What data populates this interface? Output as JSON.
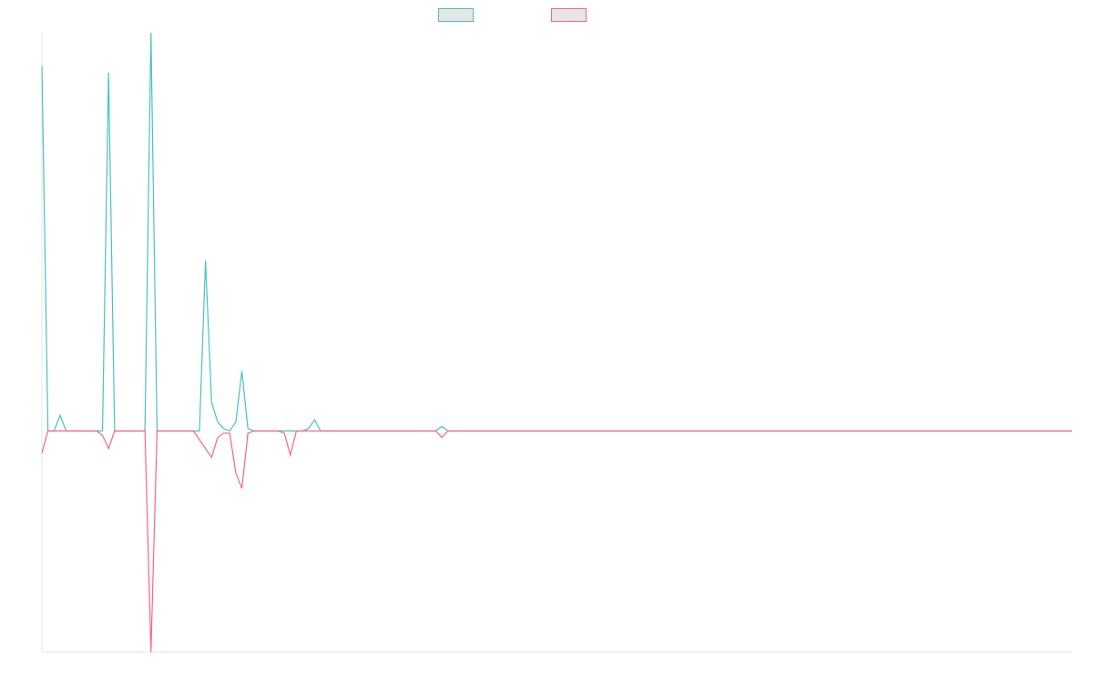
{
  "colors": {
    "series_a": "#4bc0c0",
    "series_b": "#ff6384",
    "axis": "#e6e6e6",
    "legend_fill": "#e6e6e6"
  },
  "chart_data": {
    "type": "line",
    "title": "",
    "xlabel": "",
    "ylabel": "",
    "grid": false,
    "axes_visible": true,
    "tick_labels_visible": false,
    "legend_placement": "top-center",
    "x": [
      0,
      1,
      2,
      3,
      4,
      5,
      6,
      7,
      8,
      9,
      10,
      11,
      12,
      13,
      14,
      15,
      16,
      17,
      18,
      19,
      20,
      21,
      22,
      23,
      24,
      25,
      26,
      27,
      28,
      29,
      30,
      31,
      32,
      33,
      34,
      35,
      36,
      37,
      38,
      39,
      40,
      41,
      42,
      43,
      44,
      45,
      46,
      47,
      48,
      49,
      50,
      51,
      52,
      53,
      54,
      55,
      56,
      57,
      58,
      59,
      60,
      61,
      62,
      63,
      64,
      65,
      66,
      67,
      68,
      69,
      70,
      71,
      72,
      73,
      74,
      75,
      76,
      77,
      78,
      79,
      80,
      81,
      82,
      83,
      84,
      85,
      86,
      87,
      88,
      89,
      90,
      91,
      92,
      93,
      94,
      95,
      96,
      97,
      98,
      99,
      100,
      101,
      102,
      103,
      104,
      105,
      106,
      107,
      108,
      109,
      110,
      111,
      112,
      113,
      114,
      115,
      116,
      117,
      118,
      119,
      120,
      121,
      122,
      123,
      124,
      125,
      126,
      127,
      128,
      129,
      130,
      131,
      132,
      133,
      134,
      135,
      136,
      137,
      138,
      139,
      140,
      141,
      142,
      143,
      144,
      145,
      146,
      147,
      148,
      149,
      150,
      151,
      152,
      153,
      154,
      155,
      156,
      157,
      158,
      159,
      160,
      161,
      162,
      163,
      164,
      165,
      166,
      167,
      168,
      169,
      170
    ],
    "ylim": [
      -1,
      1.8
    ],
    "series": [
      {
        "name": "",
        "color": "#4bc0c0",
        "values": [
          1.65,
          0,
          0,
          0.07,
          0,
          0,
          0,
          0,
          0,
          0,
          0,
          1.62,
          0,
          0,
          0,
          0,
          0,
          0,
          1.8,
          0,
          0,
          0,
          0,
          0,
          0,
          0,
          0,
          0.77,
          0.13,
          0.04,
          0.01,
          0,
          0.04,
          0.27,
          0.01,
          0,
          0,
          0,
          0,
          0,
          0,
          0,
          0,
          0,
          0.01,
          0.05,
          0,
          0,
          0,
          0,
          0,
          0,
          0,
          0,
          0,
          0,
          0,
          0,
          0,
          0,
          0,
          0,
          0,
          0,
          0,
          0,
          0.02,
          0,
          0,
          0,
          0,
          0,
          0,
          0,
          0,
          0,
          0,
          0,
          0,
          0,
          0,
          0,
          0,
          0,
          0,
          0,
          0,
          0,
          0,
          0,
          0,
          0,
          0,
          0,
          0,
          0,
          0,
          0,
          0,
          0,
          0,
          0,
          0,
          0,
          0,
          0,
          0,
          0,
          0,
          0,
          0,
          0,
          0,
          0,
          0,
          0,
          0,
          0,
          0,
          0,
          0,
          0,
          0,
          0,
          0,
          0,
          0,
          0,
          0,
          0,
          0,
          0,
          0,
          0,
          0,
          0,
          0,
          0,
          0,
          0,
          0,
          0,
          0,
          0,
          0,
          0,
          0,
          0,
          0,
          0,
          0,
          0,
          0,
          0,
          0,
          0,
          0,
          0,
          0,
          0,
          0,
          0,
          0,
          0,
          0,
          0,
          0,
          0,
          0,
          0,
          0
        ]
      },
      {
        "name": "",
        "color": "#ff6384",
        "values": [
          -0.1,
          0,
          0,
          0,
          0,
          0,
          0,
          0,
          0,
          0,
          -0.02,
          -0.08,
          0,
          0,
          0,
          0,
          0,
          0,
          -1,
          0,
          0,
          0,
          0,
          0,
          0,
          0,
          -0.04,
          -0.08,
          -0.12,
          -0.03,
          -0.01,
          -0.01,
          -0.19,
          -0.26,
          -0.01,
          0,
          0,
          0,
          0,
          0,
          -0.01,
          -0.11,
          0,
          0,
          0,
          0,
          0,
          0,
          0,
          0,
          0,
          0,
          0,
          0,
          0,
          0,
          0,
          0,
          0,
          0,
          0,
          0,
          0,
          0,
          0,
          0,
          -0.03,
          0,
          0,
          0,
          0,
          0,
          0,
          0,
          0,
          0,
          0,
          0,
          0,
          0,
          0,
          0,
          0,
          0,
          0,
          0,
          0,
          0,
          0,
          0,
          0,
          0,
          0,
          0,
          0,
          0,
          0,
          0,
          0,
          0,
          0,
          0,
          0,
          0,
          0,
          0,
          0,
          0,
          0,
          0,
          0,
          0,
          0,
          0,
          0,
          0,
          0,
          0,
          0,
          0,
          0,
          0,
          0,
          0,
          0,
          0,
          0,
          0,
          0,
          0,
          0,
          0,
          0,
          0,
          0,
          0,
          0,
          0,
          0,
          0,
          0,
          0,
          0,
          0,
          0,
          0,
          0,
          0,
          0,
          0,
          0,
          0,
          0,
          0,
          0,
          0,
          0,
          0,
          0,
          0,
          0,
          0,
          0,
          0,
          0,
          0,
          0,
          0,
          0,
          0,
          0
        ]
      }
    ]
  }
}
